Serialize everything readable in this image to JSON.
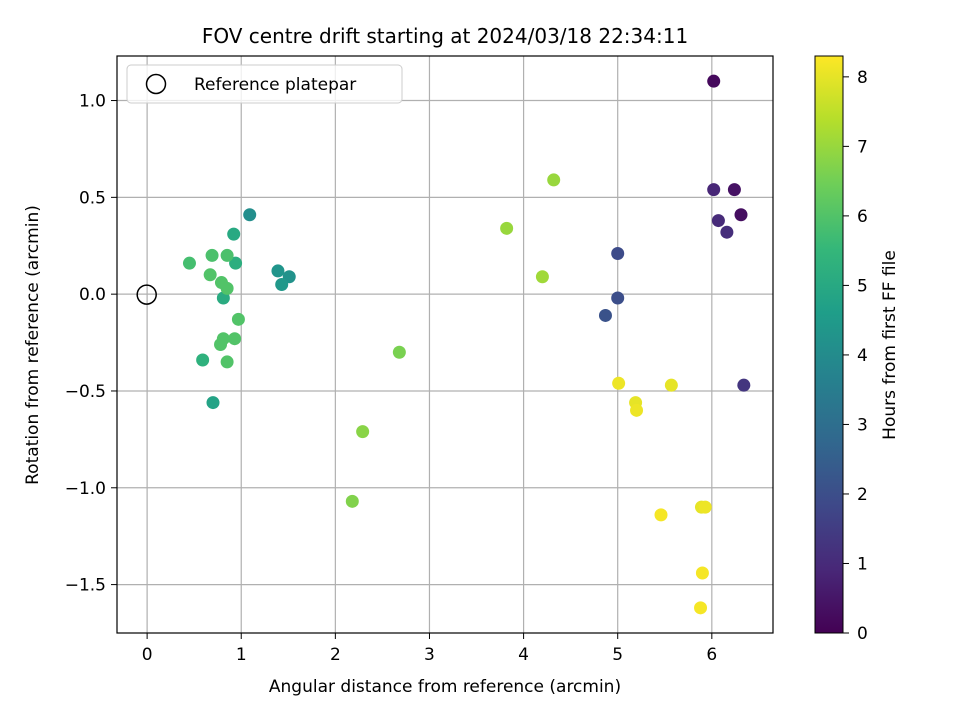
{
  "chart_data": {
    "type": "scatter",
    "title": "FOV centre drift starting at 2024/03/18 22:34:11",
    "xlabel": "Angular distance from reference (arcmin)",
    "ylabel": "Rotation from reference (arcmin)",
    "xlim": [
      -0.32,
      6.65
    ],
    "ylim": [
      -1.75,
      1.23
    ],
    "xticks": [
      0,
      1,
      2,
      3,
      4,
      5,
      6
    ],
    "yticks": [
      -1.5,
      -1.0,
      -0.5,
      0.0,
      0.5,
      1.0
    ],
    "xtick_labels": [
      "0",
      "1",
      "2",
      "3",
      "4",
      "5",
      "6"
    ],
    "ytick_labels": [
      "−1.5",
      "−1.0",
      "−0.5",
      "0.0",
      "0.5",
      "1.0"
    ],
    "grid": true,
    "legend": {
      "position": "upper-left",
      "entries": [
        "Reference platepar"
      ]
    },
    "reference_point": {
      "x": 0.0,
      "y": 0.0,
      "marker": "open-circle",
      "color": "#000000"
    },
    "colorbar": {
      "label": "Hours from first FF file",
      "colormap": "viridis",
      "range": [
        0,
        8.3
      ],
      "ticks": [
        0,
        1,
        2,
        3,
        4,
        5,
        6,
        7,
        8
      ],
      "tick_labels": [
        "0",
        "1",
        "2",
        "3",
        "4",
        "5",
        "6",
        "7",
        "8"
      ]
    },
    "points": [
      {
        "x": 6.02,
        "y": 1.1,
        "hours": 0.2
      },
      {
        "x": 6.31,
        "y": 0.41,
        "hours": 0.3
      },
      {
        "x": 6.24,
        "y": 0.54,
        "hours": 0.4
      },
      {
        "x": 6.02,
        "y": 0.54,
        "hours": 0.9
      },
      {
        "x": 6.07,
        "y": 0.38,
        "hours": 1.0
      },
      {
        "x": 6.16,
        "y": 0.32,
        "hours": 1.1
      },
      {
        "x": 6.34,
        "y": -0.47,
        "hours": 1.3
      },
      {
        "x": 5.0,
        "y": 0.21,
        "hours": 1.9
      },
      {
        "x": 5.0,
        "y": -0.02,
        "hours": 2.0
      },
      {
        "x": 4.87,
        "y": -0.11,
        "hours": 2.1
      },
      {
        "x": 1.09,
        "y": 0.41,
        "hours": 4.1
      },
      {
        "x": 1.39,
        "y": 0.12,
        "hours": 4.3
      },
      {
        "x": 1.51,
        "y": 0.09,
        "hours": 4.2
      },
      {
        "x": 1.43,
        "y": 0.05,
        "hours": 4.4
      },
      {
        "x": 0.7,
        "y": -0.56,
        "hours": 4.8
      },
      {
        "x": 0.92,
        "y": 0.31,
        "hours": 5.0
      },
      {
        "x": 0.94,
        "y": 0.16,
        "hours": 5.2
      },
      {
        "x": 0.81,
        "y": -0.02,
        "hours": 5.1
      },
      {
        "x": 0.59,
        "y": -0.34,
        "hours": 5.3
      },
      {
        "x": 0.45,
        "y": 0.16,
        "hours": 5.8
      },
      {
        "x": 0.69,
        "y": 0.2,
        "hours": 5.9
      },
      {
        "x": 0.85,
        "y": 0.2,
        "hours": 5.9
      },
      {
        "x": 0.67,
        "y": 0.1,
        "hours": 6.0
      },
      {
        "x": 0.79,
        "y": 0.06,
        "hours": 6.0
      },
      {
        "x": 0.85,
        "y": 0.03,
        "hours": 6.0
      },
      {
        "x": 0.97,
        "y": -0.13,
        "hours": 6.0
      },
      {
        "x": 0.81,
        "y": -0.23,
        "hours": 6.0
      },
      {
        "x": 0.93,
        "y": -0.23,
        "hours": 6.0
      },
      {
        "x": 0.78,
        "y": -0.26,
        "hours": 6.0
      },
      {
        "x": 0.85,
        "y": -0.35,
        "hours": 6.0
      },
      {
        "x": 2.68,
        "y": -0.3,
        "hours": 6.6
      },
      {
        "x": 2.29,
        "y": -0.71,
        "hours": 6.8
      },
      {
        "x": 2.18,
        "y": -1.07,
        "hours": 6.7
      },
      {
        "x": 3.82,
        "y": 0.34,
        "hours": 7.0
      },
      {
        "x": 4.32,
        "y": 0.59,
        "hours": 7.0
      },
      {
        "x": 4.2,
        "y": 0.09,
        "hours": 7.1
      },
      {
        "x": 5.01,
        "y": -0.46,
        "hours": 8.1
      },
      {
        "x": 5.57,
        "y": -0.47,
        "hours": 8.0
      },
      {
        "x": 5.19,
        "y": -0.56,
        "hours": 8.0
      },
      {
        "x": 5.2,
        "y": -0.6,
        "hours": 8.1
      },
      {
        "x": 5.46,
        "y": -1.14,
        "hours": 8.2
      },
      {
        "x": 5.89,
        "y": -1.1,
        "hours": 8.0
      },
      {
        "x": 5.93,
        "y": -1.1,
        "hours": 8.1
      },
      {
        "x": 5.9,
        "y": -1.44,
        "hours": 8.2
      },
      {
        "x": 5.88,
        "y": -1.62,
        "hours": 8.2
      }
    ]
  }
}
